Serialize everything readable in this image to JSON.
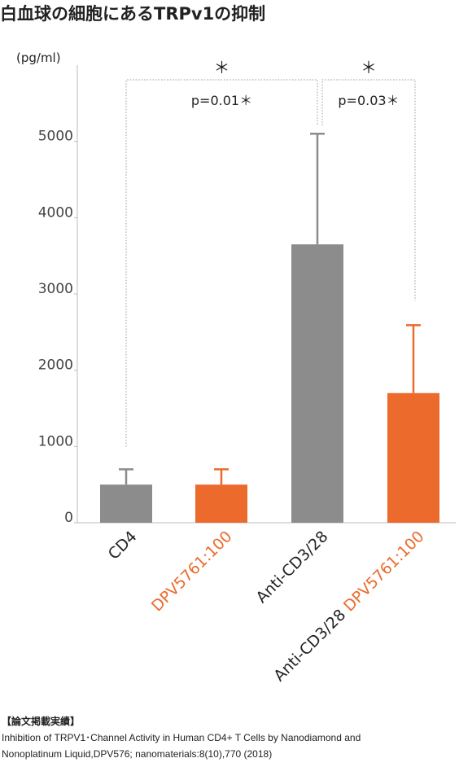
{
  "chart_data": {
    "type": "bar",
    "title": "白血球の細胞にあるTRPv1の抑制",
    "y_unit": "(pg/ml)",
    "categories": [
      [
        "CD4"
      ],
      [
        "DPV5761:100"
      ],
      [
        "Anti-CD3/28"
      ],
      [
        "Anti-CD3/28",
        "DPV5761:100"
      ]
    ],
    "category_part_colors": [
      [
        "#222222"
      ],
      [
        "#ec6a2b"
      ],
      [
        "#222222"
      ],
      [
        "#222222",
        "#ec6a2b"
      ]
    ],
    "values": [
      500,
      500,
      3650,
      1700
    ],
    "errors": [
      200,
      200,
      1450,
      890
    ],
    "colors": [
      "#8c8c8c",
      "#ec6a2b",
      "#8c8c8c",
      "#ec6a2b"
    ],
    "ylim": [
      0,
      6000
    ],
    "yticks": [
      0,
      1000,
      2000,
      3000,
      4000,
      5000
    ],
    "significance": [
      {
        "from": 0,
        "to": 2,
        "star": "＊",
        "label": "p=0.01＊"
      },
      {
        "from": 2,
        "to": 3,
        "star": "＊",
        "label": "p=0.03＊"
      }
    ]
  },
  "footer": {
    "heading": "【論文掲載実績】",
    "lines": [
      "Inhibition of TRPV1･Channel Activity in Human CD4+ T Cells by Nanodiamond and",
      "Nonoplatinum Liquid,DPV576; nanomaterials:8(10),770 (2018)"
    ]
  }
}
